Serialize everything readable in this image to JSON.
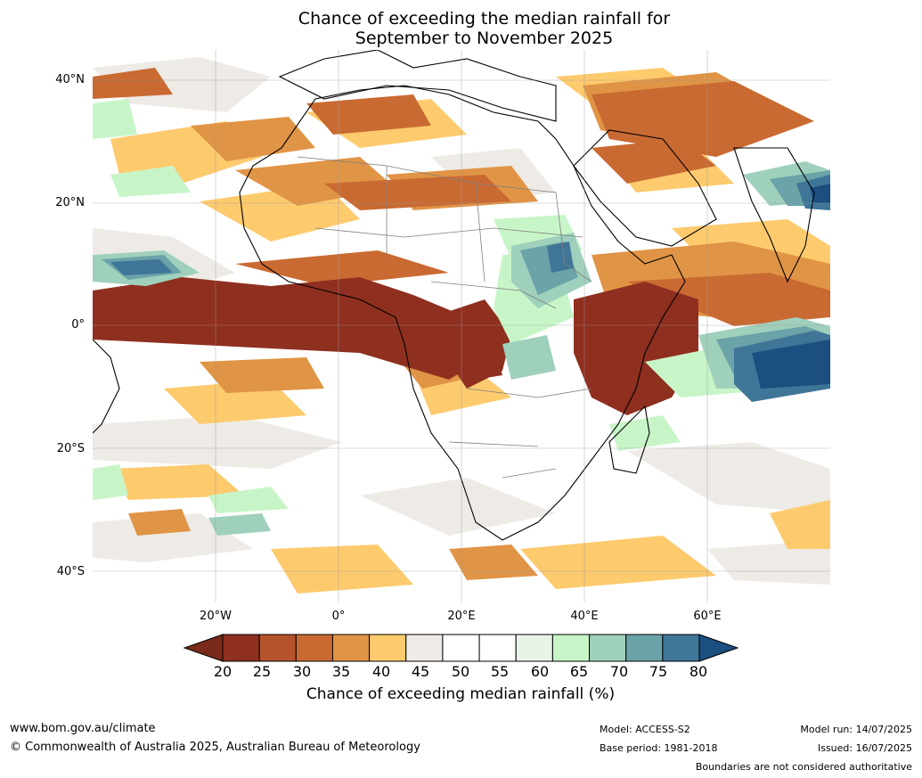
{
  "title_line1": "Chance of exceeding the median rainfall for",
  "title_line2": "September to November 2025",
  "map": {
    "lat_labels": [
      "40°N",
      "20°N",
      "0°",
      "20°S",
      "40°S"
    ],
    "lon_labels": [
      "20°W",
      "0°",
      "20°E",
      "40°E",
      "60°E"
    ],
    "grid": true,
    "region": "Africa"
  },
  "colorbar": {
    "ticks": [
      "20",
      "25",
      "30",
      "35",
      "40",
      "45",
      "50",
      "55",
      "60",
      "65",
      "70",
      "75",
      "80"
    ],
    "bin_colors": [
      "#8f2f1f",
      "#b5532c",
      "#c96a32",
      "#e09445",
      "#fdcb6e",
      "#eeebe6",
      "#ffffff",
      "#ffffff",
      "#e8f4e8",
      "#c8f5c8",
      "#9fd0bc",
      "#6aa3a8",
      "#3f7698"
    ],
    "low_arrow_color": "#7a2a1a",
    "high_arrow_color": "#1a4f80",
    "label": "Chance of exceeding median rainfall (%)"
  },
  "footer": {
    "website": "www.bom.gov.au/climate",
    "copyright": "© Commonwealth of Australia 2025, Australian Bureau of Meteorology",
    "model": "Model: ACCESS-S2",
    "base_period": "Base period: 1981-2018",
    "model_run": "Model run: 14/07/2025",
    "issued": "Issued: 16/07/2025",
    "disclaimer": "Boundaries are not considered authoritative"
  }
}
